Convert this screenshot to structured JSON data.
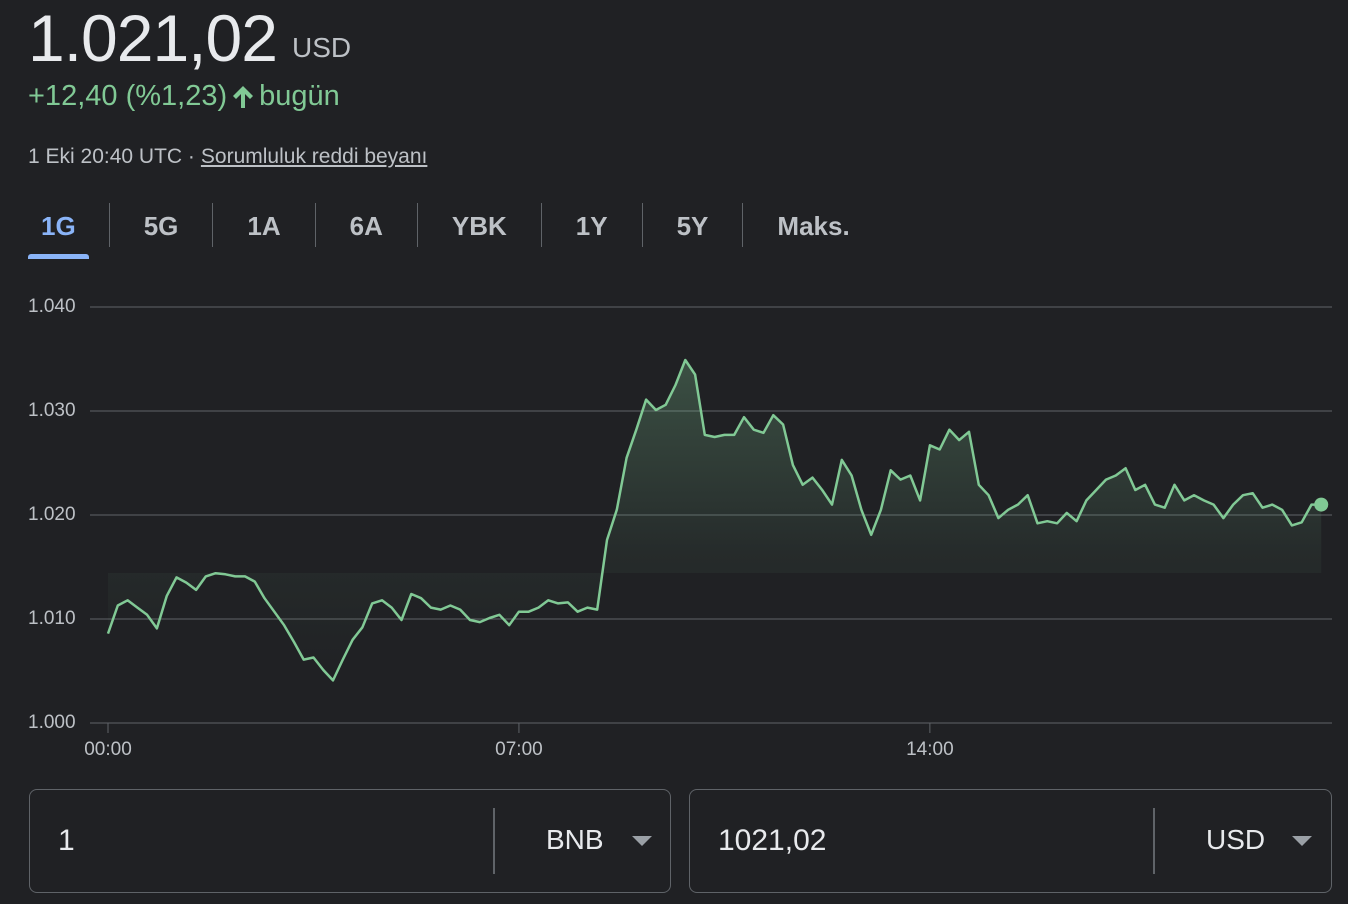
{
  "quote": {
    "price": "1.021,02",
    "currency": "USD",
    "change": "+12,40 (%1,23)",
    "period": "bugün",
    "timestamp": "1 Eki 20:40 UTC ·",
    "disclaimer": "Sorumluluk reddi beyanı"
  },
  "tabs": {
    "items": [
      "1G",
      "5G",
      "1A",
      "6A",
      "YBK",
      "1Y",
      "5Y",
      "Maks."
    ],
    "selected": "1G"
  },
  "chart_data": {
    "type": "line",
    "color": "#81c995",
    "grid": true,
    "xlim": [
      0,
      1251
    ],
    "xticks": [
      {
        "value": 0,
        "label": "00:00"
      },
      {
        "value": 420,
        "label": "07:00"
      },
      {
        "value": 840,
        "label": "14:00"
      }
    ],
    "ylim": [
      1000,
      1040
    ],
    "yticks": [
      {
        "value": 1000,
        "label": "1.000"
      },
      {
        "value": 1010,
        "label": "1.010"
      },
      {
        "value": 1020,
        "label": "1.020"
      },
      {
        "value": 1030,
        "label": "1.030"
      },
      {
        "value": 1040,
        "label": "1.040"
      }
    ],
    "x": [
      0,
      10,
      20,
      30,
      40,
      50,
      60,
      70,
      80,
      90,
      100,
      110,
      120,
      130,
      140,
      150,
      160,
      170,
      180,
      190,
      200,
      210,
      220,
      230,
      240,
      250,
      260,
      270,
      280,
      290,
      300,
      310,
      320,
      330,
      340,
      350,
      360,
      370,
      380,
      390,
      400,
      410,
      420,
      430,
      440,
      450,
      460,
      470,
      480,
      490,
      500,
      510,
      520,
      530,
      540,
      550,
      560,
      570,
      580,
      590,
      600,
      610,
      620,
      630,
      640,
      650,
      660,
      670,
      680,
      690,
      700,
      710,
      720,
      730,
      740,
      750,
      760,
      770,
      780,
      790,
      800,
      810,
      820,
      830,
      840,
      850,
      860,
      870,
      880,
      890,
      900,
      910,
      920,
      930,
      940,
      950,
      960,
      970,
      980,
      990,
      1000,
      1010,
      1020,
      1030,
      1040,
      1050,
      1060,
      1070,
      1080,
      1090,
      1100,
      1110,
      1120,
      1130,
      1140,
      1150,
      1160,
      1170,
      1180,
      1190,
      1200,
      1210,
      1220,
      1230,
      1240
    ],
    "values": [
      1008.6,
      1011.3,
      1011.8,
      1011.1,
      1010.4,
      1009.1,
      1012.2,
      1014.0,
      1013.5,
      1012.8,
      1014.1,
      1014.4,
      1014.3,
      1014.1,
      1014.1,
      1013.6,
      1012.0,
      1010.7,
      1009.4,
      1007.8,
      1006.1,
      1006.3,
      1005.1,
      1004.1,
      1006.1,
      1008.0,
      1009.2,
      1011.5,
      1011.8,
      1011.1,
      1009.9,
      1012.4,
      1012.0,
      1011.1,
      1010.9,
      1011.3,
      1010.9,
      1009.9,
      1009.7,
      1010.1,
      1010.4,
      1009.4,
      1010.7,
      1010.7,
      1011.1,
      1011.8,
      1011.5,
      1011.6,
      1010.7,
      1011.1,
      1010.9,
      1017.6,
      1020.5,
      1025.5,
      1028.2,
      1031.1,
      1030.1,
      1030.6,
      1032.5,
      1034.9,
      1033.5,
      1027.7,
      1027.5,
      1027.7,
      1027.7,
      1029.4,
      1028.2,
      1027.9,
      1029.6,
      1028.7,
      1024.8,
      1022.9,
      1023.6,
      1022.4,
      1021.0,
      1025.3,
      1023.8,
      1020.5,
      1018.1,
      1020.5,
      1024.3,
      1023.4,
      1023.8,
      1021.4,
      1026.7,
      1026.3,
      1028.2,
      1027.2,
      1028.0,
      1022.9,
      1021.9,
      1019.7,
      1020.5,
      1021.0,
      1021.9,
      1019.2,
      1019.4,
      1019.2,
      1020.2,
      1019.4,
      1021.4,
      1022.4,
      1023.4,
      1023.8,
      1024.5,
      1022.4,
      1022.9,
      1021.0,
      1020.7,
      1022.9,
      1021.4,
      1021.9,
      1021.4,
      1021.0,
      1019.7,
      1021.0,
      1021.9,
      1022.1,
      1020.7,
      1021.0,
      1020.5,
      1019.0,
      1019.3,
      1021.0,
      1021.0
    ]
  },
  "converter": {
    "from_amount": "1",
    "from_currency": "BNB",
    "to_amount": "1021,02",
    "to_currency": "USD"
  }
}
